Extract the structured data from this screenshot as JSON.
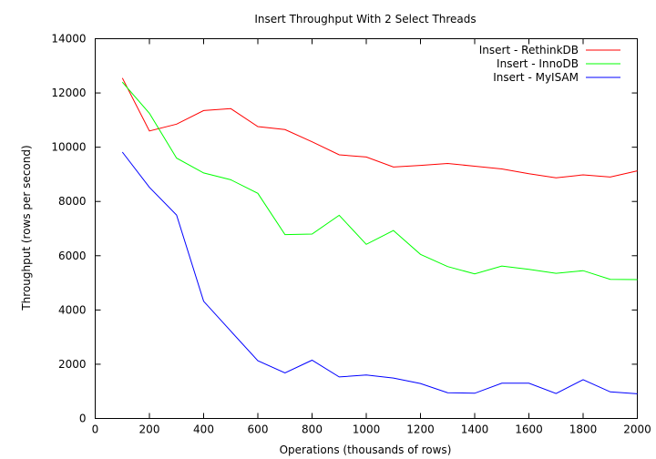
{
  "chart_data": {
    "type": "line",
    "title": "Insert Throughput With 2 Select Threads",
    "xlabel": "Operations (thousands of rows)",
    "ylabel": "Throughput (rows per second)",
    "xlim": [
      0,
      2000
    ],
    "ylim": [
      0,
      14000
    ],
    "x_ticks": [
      0,
      200,
      400,
      600,
      800,
      1000,
      1200,
      1400,
      1600,
      1800,
      2000
    ],
    "y_ticks": [
      0,
      2000,
      4000,
      6000,
      8000,
      10000,
      12000,
      14000
    ],
    "grid": false,
    "legend_position": "top-right",
    "x": [
      100,
      200,
      300,
      400,
      500,
      600,
      700,
      800,
      900,
      1000,
      1100,
      1200,
      1300,
      1400,
      1500,
      1600,
      1700,
      1800,
      1900,
      2000
    ],
    "series": [
      {
        "name": "Insert - RethinkDB",
        "color": "#ff0000",
        "values": [
          12550,
          10600,
          10850,
          11350,
          11420,
          10760,
          10650,
          10200,
          9720,
          9640,
          9270,
          9330,
          9400,
          9300,
          9200,
          9020,
          8870,
          8980,
          8900,
          9130
        ]
      },
      {
        "name": "Insert - InnoDB",
        "color": "#00ff00",
        "values": [
          12400,
          11250,
          9600,
          9050,
          8800,
          8300,
          6780,
          6800,
          7490,
          6420,
          6930,
          6050,
          5600,
          5330,
          5620,
          5500,
          5350,
          5450,
          5130,
          5120
        ]
      },
      {
        "name": "Insert - MyISAM",
        "color": "#0000ff",
        "values": [
          9820,
          8520,
          7500,
          4320,
          3220,
          2130,
          1680,
          2150,
          1530,
          1600,
          1490,
          1290,
          950,
          930,
          1300,
          1300,
          920,
          1430,
          980,
          910
        ]
      }
    ]
  }
}
